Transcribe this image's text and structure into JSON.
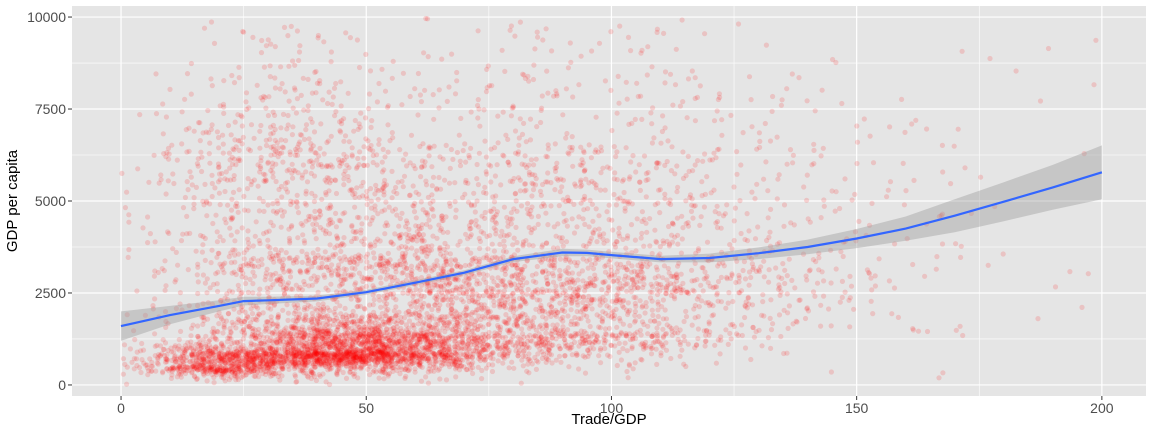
{
  "chart_data": {
    "type": "scatter",
    "title": "",
    "xlabel": "Trade/GDP",
    "ylabel": "GDP per capita",
    "xlim": [
      -10,
      209
    ],
    "ylim": [
      -300,
      10300
    ],
    "x_ticks": [
      0,
      50,
      100,
      150,
      200
    ],
    "x_tick_labels": [
      "0",
      "50",
      "100",
      "150",
      "200"
    ],
    "y_ticks": [
      0,
      2500,
      5000,
      7500,
      10000
    ],
    "y_tick_labels": [
      "0",
      "2500",
      "5000",
      "7500",
      "10000"
    ],
    "grid": true,
    "legend": "none",
    "background": "#e5e5e5",
    "grid_color": "#ffffff",
    "point_color": "#ff0000",
    "point_alpha": 0.15,
    "smooth_color": "#3366ff",
    "ribbon_color": "#999999",
    "density_clusters": [
      {
        "x": 45,
        "y": 900,
        "sx": 16,
        "sy": 550,
        "n": 2300
      },
      {
        "x": 20,
        "y": 500,
        "sx": 8,
        "sy": 300,
        "n": 450
      },
      {
        "x": 80,
        "y": 1400,
        "sx": 22,
        "sy": 800,
        "n": 900
      },
      {
        "x": 50,
        "y": 3500,
        "sx": 25,
        "sy": 1800,
        "n": 1300
      },
      {
        "x": 100,
        "y": 3000,
        "sx": 25,
        "sy": 1500,
        "n": 800
      },
      {
        "x": 30,
        "y": 6500,
        "sx": 12,
        "sy": 1700,
        "n": 300
      },
      {
        "x": 90,
        "y": 6500,
        "sx": 30,
        "sy": 2200,
        "n": 450
      },
      {
        "x": 145,
        "y": 3500,
        "sx": 28,
        "sy": 2800,
        "n": 180
      }
    ],
    "smooth": {
      "x": [
        0,
        10,
        20,
        25,
        30,
        40,
        50,
        60,
        70,
        80,
        90,
        95,
        100,
        110,
        120,
        130,
        140,
        150,
        160,
        170,
        180,
        190,
        200
      ],
      "y": [
        1600,
        1900,
        2150,
        2280,
        2300,
        2350,
        2520,
        2780,
        3050,
        3420,
        3600,
        3590,
        3530,
        3420,
        3450,
        3580,
        3750,
        3980,
        4250,
        4600,
        4980,
        5370,
        5780
      ],
      "lower": [
        1200,
        1650,
        2000,
        2160,
        2200,
        2270,
        2450,
        2710,
        2980,
        3340,
        3500,
        3500,
        3440,
        3330,
        3330,
        3420,
        3550,
        3720,
        3920,
        4150,
        4450,
        4760,
        5050
      ],
      "upper": [
        2000,
        2150,
        2300,
        2400,
        2400,
        2430,
        2590,
        2850,
        3120,
        3500,
        3700,
        3680,
        3620,
        3510,
        3570,
        3740,
        3950,
        4240,
        4580,
        5050,
        5510,
        5980,
        6510
      ]
    }
  }
}
